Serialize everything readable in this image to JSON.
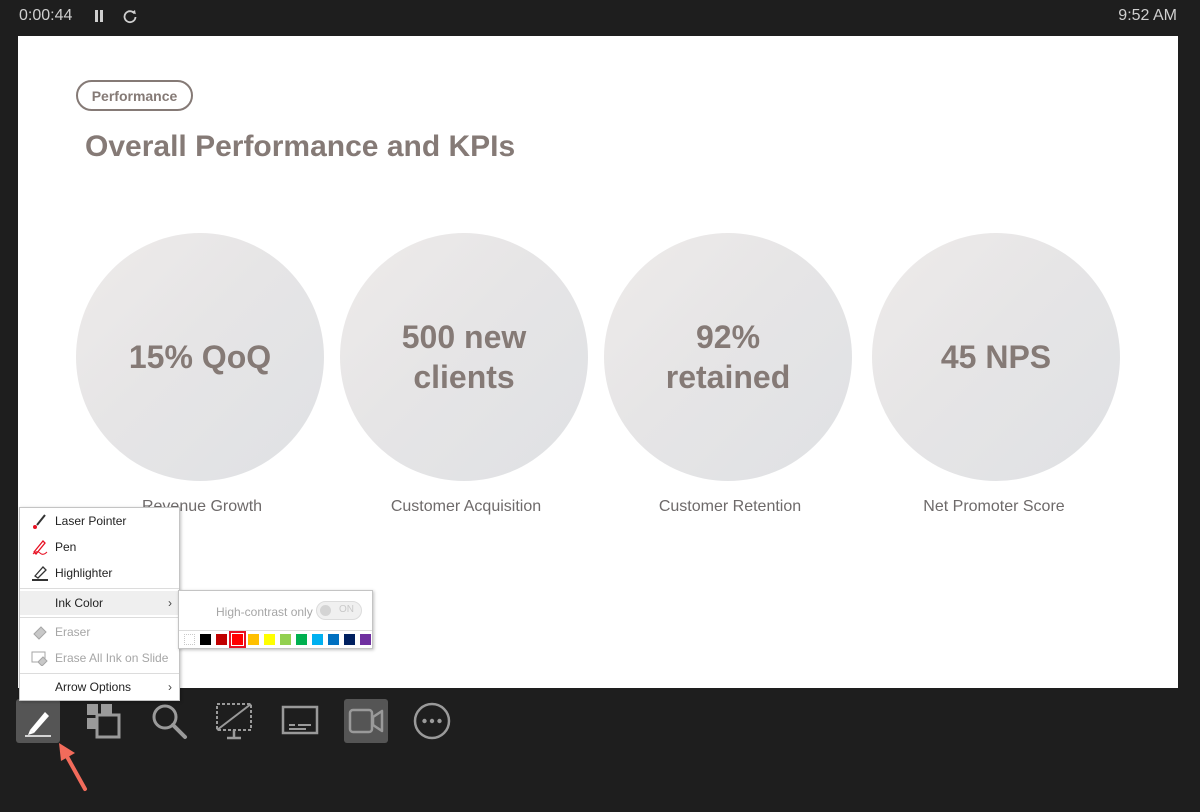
{
  "topbar": {
    "timer": "0:00:44",
    "clock": "9:52 AM"
  },
  "slide": {
    "tag": "Performance",
    "title": "Overall Performance and KPIs",
    "kpis": [
      {
        "value": "15% QoQ",
        "label": "Revenue Growth"
      },
      {
        "value": "500 new clients",
        "label": "Customer Acquisition"
      },
      {
        "value": "92% retained",
        "label": "Customer Retention"
      },
      {
        "value": "45 NPS",
        "label": "Net Promoter Score"
      }
    ]
  },
  "menu": {
    "laser_pointer": "Laser Pointer",
    "pen": "Pen",
    "highlighter": "Highlighter",
    "ink_color": "Ink Color",
    "eraser": "Eraser",
    "erase_all": "Erase All Ink on Slide",
    "arrow_options": "Arrow Options"
  },
  "submenu": {
    "high_contrast_label": "High-contrast only",
    "toggle_state": "ON",
    "swatches": [
      "none",
      "#000000",
      "#c00000",
      "#ff0000",
      "#ffc000",
      "#ffff00",
      "#92d050",
      "#00b050",
      "#00b0f0",
      "#0070c0",
      "#002060",
      "#7030a0"
    ],
    "selected_color": "#ff0000"
  },
  "toolbar": {
    "tools": [
      "pen-icon",
      "slides-grid-icon",
      "zoom-icon",
      "black-screen-icon",
      "subtitles-icon",
      "camera-icon",
      "more-icon"
    ]
  }
}
